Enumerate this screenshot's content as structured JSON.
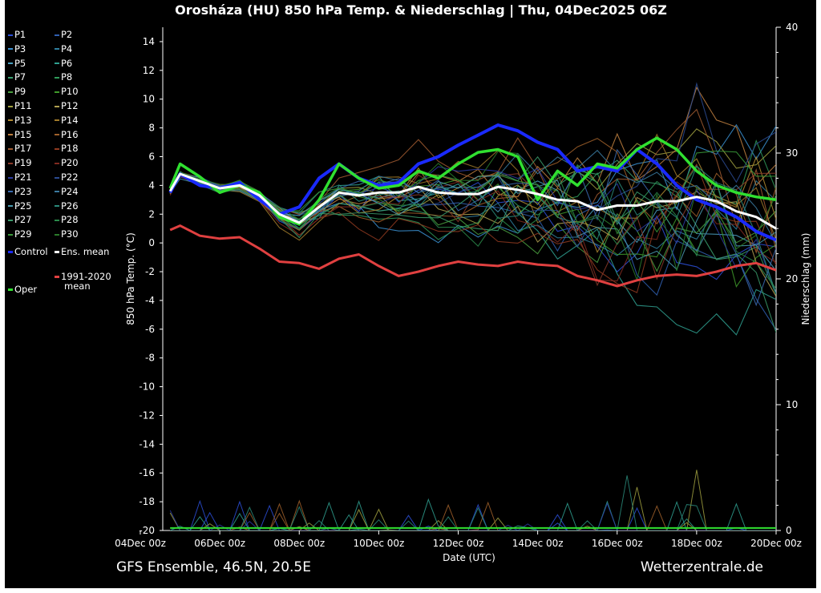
{
  "header": {
    "title": "Orosháza  (HU)  850 hPa Temp. & Niederschlag | Thu, 04Dec2025 06Z"
  },
  "footer": {
    "left": "GFS Ensemble, 46.5N, 20.5E",
    "right": "Wetterzentrale.de"
  },
  "legend": {
    "items": [
      {
        "label": "P1",
        "color": "#2b4fd8"
      },
      {
        "label": "P2",
        "color": "#2f5fb0"
      },
      {
        "label": "P3",
        "color": "#3a8fd0"
      },
      {
        "label": "P4",
        "color": "#2f7f9f"
      },
      {
        "label": "P5",
        "color": "#4a9fc0"
      },
      {
        "label": "P6",
        "color": "#2fa090"
      },
      {
        "label": "P7",
        "color": "#3aa070"
      },
      {
        "label": "P8",
        "color": "#2f9a5a"
      },
      {
        "label": "P9",
        "color": "#4aa040"
      },
      {
        "label": "P10",
        "color": "#3f9a2a"
      },
      {
        "label": "P11",
        "color": "#a0a040"
      },
      {
        "label": "P12",
        "color": "#b0a050"
      },
      {
        "label": "P13",
        "color": "#b08a30"
      },
      {
        "label": "P14",
        "color": "#a07a2a"
      },
      {
        "label": "P15",
        "color": "#c08040"
      },
      {
        "label": "P16",
        "color": "#a0602a"
      },
      {
        "label": "P17",
        "color": "#a05a30"
      },
      {
        "label": "P18",
        "color": "#903a20"
      },
      {
        "label": "P19",
        "color": "#8a3a2a"
      },
      {
        "label": "P20",
        "color": "#802a20"
      },
      {
        "label": "P21",
        "color": "#2a3aa0"
      },
      {
        "label": "P22",
        "color": "#2a4a90"
      },
      {
        "label": "P23",
        "color": "#3a6ab0"
      },
      {
        "label": "P24",
        "color": "#3a7aa0"
      },
      {
        "label": "P25",
        "color": "#4a9ab0"
      },
      {
        "label": "P26",
        "color": "#2a8a7a"
      },
      {
        "label": "P27",
        "color": "#3a9a6a"
      },
      {
        "label": "P28",
        "color": "#2a8a4a"
      },
      {
        "label": "P29",
        "color": "#3a9a3a"
      },
      {
        "label": "P30",
        "color": "#2a7a2a"
      },
      {
        "label": "Control",
        "color": "#1a2aff"
      },
      {
        "label": "Ens. mean",
        "color": "#ffffff"
      },
      {
        "label": "1991-2020 mean",
        "color": "#e04040"
      },
      {
        "label": "Oper",
        "color": "#30e030"
      }
    ],
    "clim_label_1": "1991-2020",
    "clim_label_2": "mean"
  },
  "chart_data": {
    "type": "line",
    "xlabel": "Date (UTC)",
    "ylabel": "850 hPa Temp. (°C)",
    "ylabel_right": "Niederschlag (mm)",
    "x_ticks": [
      "04Dec 00z",
      "06Dec 00z",
      "08Dec 00z",
      "10Dec 00z",
      "12Dec 00z",
      "14Dec 00z",
      "16Dec 00z",
      "18Dec 00z",
      "20Dec 00z"
    ],
    "x_range_days": [
      0,
      16
    ],
    "ylim": [
      -20,
      15
    ],
    "y_ticks": [
      14,
      12,
      10,
      8,
      6,
      4,
      2,
      0,
      -2,
      -4,
      -6,
      -8,
      -10,
      -12,
      -14,
      -16,
      -18,
      -20
    ],
    "ylim_right": [
      0,
      40
    ],
    "y2_ticks": [
      40,
      30,
      20,
      10,
      0
    ],
    "grid": false,
    "colors": {
      "control": "#1a2aff",
      "mean": "#ffffff",
      "climate": "#e04040",
      "oper": "#30e030"
    },
    "series": [
      {
        "name": "Control",
        "x": [
          0.75,
          1,
          1.5,
          2,
          2.5,
          3,
          3.5,
          4,
          4.5,
          5,
          5.5,
          6,
          6.5,
          7,
          7.5,
          8,
          8.5,
          9,
          9.5,
          10,
          10.5,
          11,
          11.5,
          12,
          12.5,
          13,
          13.5,
          14,
          14.5,
          15,
          15.5,
          16
        ],
        "values": [
          3.5,
          4.8,
          4.0,
          3.8,
          4.2,
          3.0,
          2.0,
          2.5,
          4.5,
          5.5,
          4.5,
          4.0,
          4.2,
          5.5,
          6.0,
          6.8,
          7.5,
          8.2,
          7.8,
          7.0,
          6.5,
          5.0,
          5.3,
          5.0,
          6.5,
          5.5,
          4.0,
          3.0,
          2.5,
          1.8,
          0.8,
          0.2
        ]
      },
      {
        "name": "Ens. mean",
        "x": [
          0.75,
          1,
          1.5,
          2,
          2.5,
          3,
          3.5,
          4,
          4.5,
          5,
          5.5,
          6,
          6.5,
          7,
          7.5,
          8,
          8.5,
          9,
          9.5,
          10,
          10.5,
          11,
          11.5,
          12,
          12.5,
          13,
          13.5,
          14,
          14.5,
          15,
          15.5,
          16
        ],
        "values": [
          3.6,
          4.8,
          4.3,
          3.8,
          4.0,
          3.3,
          2.0,
          1.4,
          2.5,
          3.5,
          3.3,
          3.5,
          3.5,
          3.9,
          3.5,
          3.4,
          3.4,
          3.9,
          3.7,
          3.4,
          3.0,
          2.9,
          2.3,
          2.6,
          2.6,
          2.9,
          2.9,
          3.2,
          2.9,
          2.2,
          1.8,
          1.0
        ]
      },
      {
        "name": "Oper",
        "x": [
          0.75,
          1,
          1.5,
          2,
          2.5,
          3,
          3.5,
          4,
          4.5,
          5,
          5.5,
          6,
          6.5,
          7,
          7.5,
          8,
          8.5,
          9,
          9.5,
          10,
          10.5,
          11,
          11.5,
          12,
          12.5,
          13,
          13.5,
          14,
          14.5,
          15,
          15.5,
          16
        ],
        "values": [
          3.8,
          5.5,
          4.6,
          3.5,
          4.0,
          3.5,
          1.8,
          1.3,
          3.0,
          5.5,
          4.5,
          3.8,
          4.0,
          5.0,
          4.5,
          5.5,
          6.3,
          6.5,
          6.0,
          3.0,
          5.0,
          4.0,
          5.5,
          5.2,
          6.5,
          7.3,
          6.5,
          5.0,
          4.0,
          3.5,
          3.2,
          3.0
        ]
      },
      {
        "name": "1991-2020 mean",
        "x": [
          0.75,
          1,
          1.5,
          2,
          2.5,
          3,
          3.5,
          4,
          4.5,
          5,
          5.5,
          6,
          6.5,
          7,
          7.5,
          8,
          8.5,
          9,
          9.5,
          10,
          10.5,
          11,
          11.5,
          12,
          12.5,
          13,
          13.5,
          14,
          14.5,
          15,
          15.5,
          16
        ],
        "values": [
          0.9,
          1.2,
          0.5,
          0.3,
          0.4,
          -0.4,
          -1.3,
          -1.4,
          -1.8,
          -1.1,
          -0.8,
          -1.6,
          -2.3,
          -2.0,
          -1.6,
          -1.3,
          -1.5,
          -1.6,
          -1.3,
          -1.5,
          -1.6,
          -2.3,
          -2.6,
          -3.0,
          -2.6,
          -2.3,
          -2.2,
          -2.3,
          -2.0,
          -1.6,
          -1.4,
          -1.9
        ]
      }
    ]
  }
}
